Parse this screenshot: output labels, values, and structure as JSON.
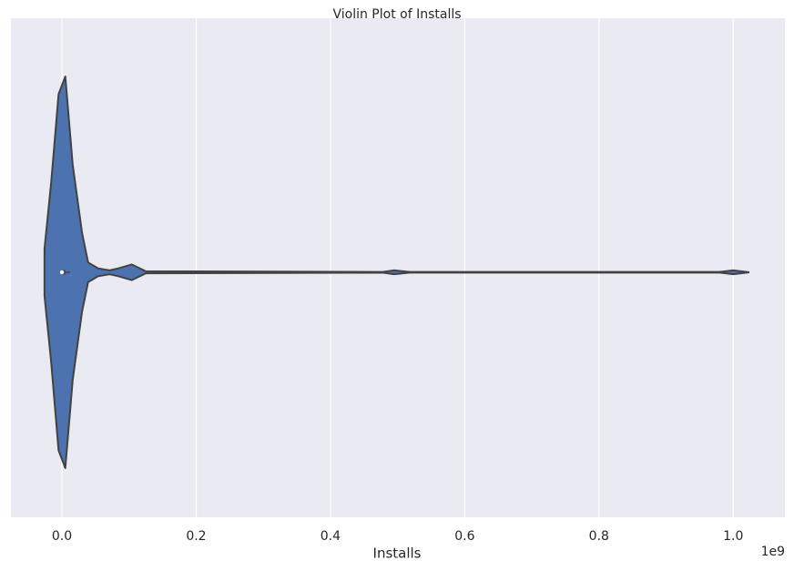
{
  "chart_data": {
    "type": "violin",
    "title": "Violin Plot of Installs",
    "xlabel": "Installs",
    "x_offset_label": "1e9",
    "xlim": [
      -76000000,
      1077000000
    ],
    "xticks": [
      {
        "value": 0,
        "label": "0.0"
      },
      {
        "value": 200000000,
        "label": "0.2"
      },
      {
        "value": 400000000,
        "label": "0.4"
      },
      {
        "value": 600000000,
        "label": "0.6"
      },
      {
        "value": 800000000,
        "label": "0.8"
      },
      {
        "value": 1000000000,
        "label": "1.0"
      }
    ],
    "grid": true,
    "color": "#4c72b0",
    "x": [
      -26000000,
      -26000000,
      -16000000,
      -5000000,
      5000000,
      16000000,
      30000000,
      39000000,
      54000000,
      71000000,
      84000000,
      104000000,
      125000000,
      478000000,
      495000000,
      518000000,
      980000000,
      1000000000,
      1024000000
    ],
    "density": [
      0,
      0.12,
      0.46,
      0.91,
      1.0,
      0.55,
      0.2,
      0.05,
      0.02,
      0.01,
      0.02,
      0.04,
      0.005,
      0.002,
      0.01,
      0.002,
      0.002,
      0.01,
      0
    ],
    "box": {
      "whisker_low": 0,
      "q1": 1000,
      "median": 100000,
      "q3": 5000000,
      "whisker_high": 12000000
    }
  }
}
